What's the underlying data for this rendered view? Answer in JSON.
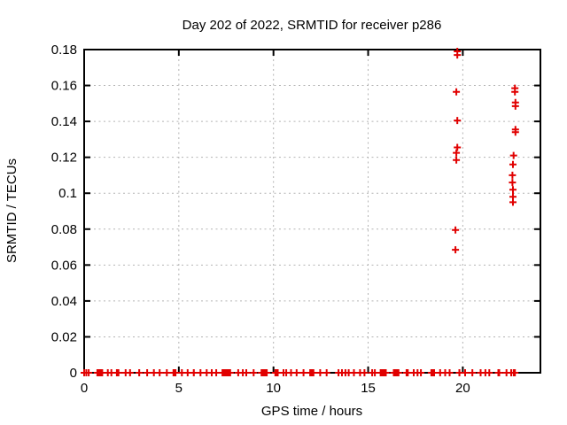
{
  "colors": {
    "marker": "#e10000",
    "grid": "#b3b3b3",
    "axis": "#000000",
    "text": "#000000",
    "background": "#ffffff"
  },
  "chart_data": {
    "type": "scatter",
    "title": "Day 202 of 2022, SRMTID for receiver p286",
    "xlabel": "GPS time / hours",
    "ylabel": "SRMTID / TECUs",
    "xlim": [
      0,
      24.1
    ],
    "ylim": [
      0,
      0.18
    ],
    "grid": true,
    "legend": false,
    "marker": "plus",
    "xticks": [
      {
        "v": 0,
        "label": "0"
      },
      {
        "v": 5,
        "label": "5"
      },
      {
        "v": 10,
        "label": "10"
      },
      {
        "v": 15,
        "label": "15"
      },
      {
        "v": 20,
        "label": "20"
      }
    ],
    "yticks": [
      {
        "v": 0,
        "label": "0"
      },
      {
        "v": 0.02,
        "label": "0.02"
      },
      {
        "v": 0.04,
        "label": "0.04"
      },
      {
        "v": 0.06,
        "label": "0.06"
      },
      {
        "v": 0.08,
        "label": "0.08"
      },
      {
        "v": 0.1,
        "label": "0.1"
      },
      {
        "v": 0.12,
        "label": "0.12"
      },
      {
        "v": 0.14,
        "label": "0.14"
      },
      {
        "v": 0.16,
        "label": "0.16"
      },
      {
        "v": 0.18,
        "label": "0.18"
      }
    ],
    "series": [
      {
        "name": "SRMTID",
        "color": "#e10000",
        "marker": "plus",
        "outlier_points": [
          [
            19.71,
            0.179
          ],
          [
            19.71,
            0.177
          ],
          [
            19.66,
            0.1565
          ],
          [
            19.71,
            0.1405
          ],
          [
            19.71,
            0.1255
          ],
          [
            19.66,
            0.1225
          ],
          [
            19.66,
            0.1185
          ],
          [
            19.61,
            0.0795
          ],
          [
            19.61,
            0.0685
          ],
          [
            22.75,
            0.1585
          ],
          [
            22.75,
            0.1565
          ],
          [
            22.78,
            0.1505
          ],
          [
            22.78,
            0.1485
          ],
          [
            22.78,
            0.1355
          ],
          [
            22.78,
            0.134
          ],
          [
            22.68,
            0.121
          ],
          [
            22.65,
            0.116
          ],
          [
            22.62,
            0.11
          ],
          [
            22.62,
            0.106
          ],
          [
            22.65,
            0.102
          ],
          [
            22.65,
            0.098
          ],
          [
            22.65,
            0.095
          ]
        ],
        "baseline_y": 0,
        "baseline_runs": [
          [
            -0.05,
            0.05
          ],
          [
            0.08,
            0.14
          ],
          [
            0.2,
            0.28
          ],
          [
            0.51,
            1.14
          ],
          [
            1.18,
            1.32
          ],
          [
            1.39,
            1.48
          ],
          [
            1.54,
            2.0
          ],
          [
            2.12,
            2.26
          ],
          [
            2.31,
            2.54
          ],
          [
            2.72,
            3.1
          ],
          [
            3.17,
            3.48
          ],
          [
            3.59,
            3.78
          ],
          [
            3.82,
            4.15
          ],
          [
            4.25,
            4.48
          ],
          [
            4.53,
            5.01
          ],
          [
            5.06,
            5.26
          ],
          [
            5.37,
            5.56
          ],
          [
            5.6,
            5.98
          ],
          [
            6.05,
            6.24
          ],
          [
            6.29,
            6.65
          ],
          [
            6.69,
            6.79
          ],
          [
            6.88,
            7.07
          ],
          [
            7.12,
            7.9
          ],
          [
            7.99,
            8.29
          ],
          [
            8.33,
            8.43
          ],
          [
            8.47,
            8.66
          ],
          [
            8.77,
            9.13
          ],
          [
            9.18,
            9.83
          ],
          [
            9.91,
            10.41
          ],
          [
            10.47,
            10.59
          ],
          [
            10.64,
            10.71
          ],
          [
            10.78,
            11.07
          ],
          [
            11.11,
            11.33
          ],
          [
            11.46,
            11.71
          ],
          [
            11.75,
            12.3
          ],
          [
            12.34,
            12.59
          ],
          [
            12.65,
            12.97
          ],
          [
            13.37,
            13.5
          ],
          [
            13.55,
            13.69
          ],
          [
            13.73,
            13.87
          ],
          [
            13.92,
            14.03
          ],
          [
            14.08,
            14.42
          ],
          [
            14.47,
            14.67
          ],
          [
            14.75,
            14.86
          ],
          [
            15.17,
            15.26
          ],
          [
            15.31,
            15.4
          ],
          [
            15.47,
            16.12
          ],
          [
            16.17,
            16.79
          ],
          [
            16.84,
            17.28
          ],
          [
            17.32,
            17.5
          ],
          [
            17.54,
            17.68
          ],
          [
            17.73,
            17.84
          ],
          [
            18.15,
            18.67
          ],
          [
            18.71,
            18.9
          ],
          [
            18.95,
            19.19
          ],
          [
            19.24,
            19.37
          ],
          [
            19.63,
            20.01
          ],
          [
            20.05,
            20.19
          ],
          [
            20.33,
            20.68
          ],
          [
            20.83,
            21.05
          ],
          [
            21.1,
            21.29
          ],
          [
            21.33,
            21.47
          ],
          [
            21.69,
            22.11
          ],
          [
            22.16,
            22.46
          ],
          [
            22.5,
            22.61
          ],
          [
            22.66,
            22.71
          ],
          [
            22.74,
            22.76
          ]
        ]
      }
    ]
  }
}
